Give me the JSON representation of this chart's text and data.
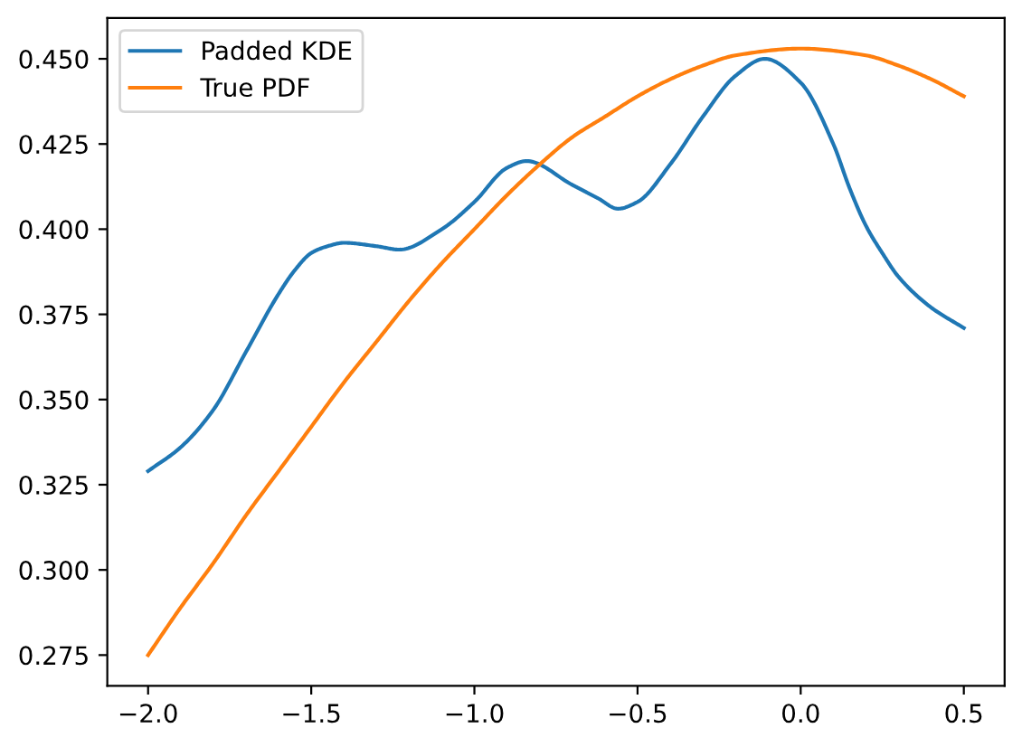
{
  "chart_data": {
    "type": "line",
    "xlim": [
      -2.125,
      0.625
    ],
    "xticks": [
      {
        "value": -2.0,
        "label": "−2.0"
      },
      {
        "value": -1.5,
        "label": "−1.5"
      },
      {
        "value": -1.0,
        "label": "−1.0"
      },
      {
        "value": -0.5,
        "label": "−0.5"
      },
      {
        "value": 0.0,
        "label": "0.0"
      },
      {
        "value": 0.5,
        "label": "0.5"
      }
    ],
    "ylim": [
      0.266,
      0.462
    ],
    "yticks": [
      0.275,
      {
        "value": 0.3,
        "label": "0.300"
      },
      0.325,
      {
        "value": 0.35,
        "label": "0.350"
      },
      0.375,
      {
        "value": 0.4,
        "label": "0.400"
      },
      0.425,
      {
        "value": 0.45,
        "label": "0.450"
      }
    ],
    "legend": "top left",
    "line_style": "solid",
    "series": [
      {
        "name": "Padded KDE",
        "color": "#1f77b4",
        "x": [
          -2.0,
          -1.9,
          -1.8,
          -1.7,
          -1.6,
          -1.55,
          -1.5,
          -1.45,
          -1.4,
          -1.3,
          -1.23,
          -1.1,
          -1.0,
          -0.9,
          -0.84,
          -0.7,
          -0.62,
          -0.56,
          -0.5,
          -0.4,
          -0.3,
          -0.2,
          -0.11,
          0.0,
          0.1,
          0.15,
          0.2,
          0.25,
          0.3,
          0.4,
          0.5
        ],
        "values": [
          0.329,
          0.336,
          0.347,
          0.364,
          0.381,
          0.388,
          0.393,
          0.395,
          0.396,
          0.395,
          0.394,
          0.4,
          0.408,
          0.418,
          0.42,
          0.413,
          0.409,
          0.406,
          0.408,
          0.419,
          0.433,
          0.445,
          0.45,
          0.443,
          0.425,
          0.412,
          0.401,
          0.393,
          0.386,
          0.377,
          0.371
        ]
      },
      {
        "name": "True PDF",
        "color": "#ff7f0e",
        "x": [
          -2.0,
          -1.9,
          -1.8,
          -1.7,
          -1.6,
          -1.5,
          -1.4,
          -1.3,
          -1.2,
          -1.1,
          -1.0,
          -0.9,
          -0.8,
          -0.7,
          -0.6,
          -0.5,
          -0.4,
          -0.3,
          -0.2,
          0.0,
          0.2,
          0.3,
          0.4,
          0.5
        ],
        "values": [
          0.275,
          0.289,
          0.302,
          0.316,
          0.329,
          0.342,
          0.355,
          0.367,
          0.379,
          0.39,
          0.4,
          0.41,
          0.419,
          0.427,
          0.433,
          0.439,
          0.444,
          0.448,
          0.451,
          0.453,
          0.451,
          0.448,
          0.444,
          0.439
        ]
      }
    ]
  }
}
